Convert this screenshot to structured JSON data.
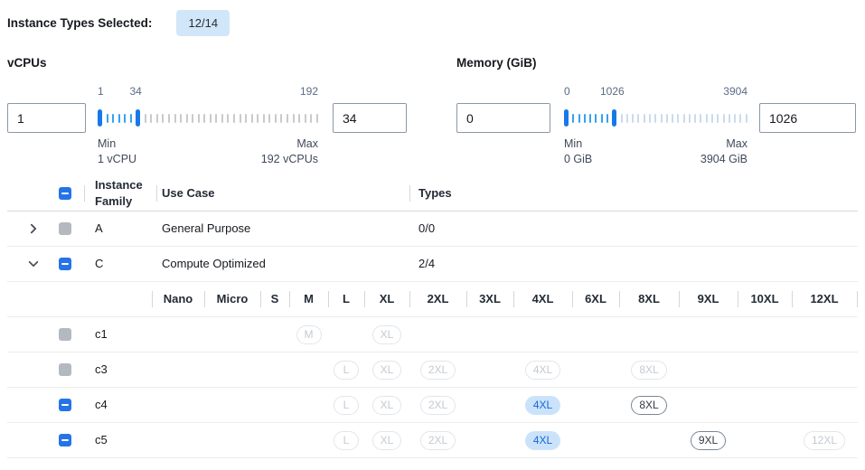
{
  "summary": {
    "label": "Instance Types Selected:",
    "count": "12/14"
  },
  "filters": [
    {
      "id": "vcpus",
      "title": "vCPUs",
      "from_value": "1",
      "to_value": "34",
      "scale_labels": [
        "1",
        "34",
        "192"
      ],
      "range": {
        "min": 1,
        "max": 192,
        "low": 1,
        "high": 34
      },
      "tick_count": 37,
      "min_label": "Min",
      "min_caption": "1 vCPU",
      "max_label": "Max",
      "max_caption": "192 vCPUs"
    },
    {
      "id": "memory",
      "title": "Memory (GiB)",
      "from_value": "0",
      "to_value": "1026",
      "scale_labels": [
        "0",
        "1026",
        "3904"
      ],
      "range": {
        "min": 0,
        "max": 3904,
        "low": 0,
        "high": 1026
      },
      "tick_count": 32,
      "min_label": "Min",
      "min_caption": "0 GiB",
      "max_label": "Max",
      "max_caption": "3904 GiB"
    }
  ],
  "table": {
    "select_all_state": "indeterminate",
    "columns": [
      {
        "id": "family",
        "label": "Instance Family"
      },
      {
        "id": "use_case",
        "label": "Use Case"
      },
      {
        "id": "types",
        "label": "Types"
      }
    ],
    "size_columns": [
      "Nano",
      "Micro",
      "S",
      "M",
      "L",
      "XL",
      "2XL",
      "3XL",
      "4XL",
      "6XL",
      "8XL",
      "9XL",
      "10XL",
      "12XL"
    ],
    "family_groups": [
      {
        "name": "A",
        "use_case": "General Purpose",
        "types_count": "0/0",
        "expanded": false,
        "checkbox": "disabled",
        "instances": []
      },
      {
        "name": "C",
        "use_case": "Compute Optimized",
        "types_count": "2/4",
        "expanded": true,
        "checkbox": "indeterminate",
        "instances": [
          {
            "name": "c1",
            "checkbox": "disabled",
            "sizes": {
              "M": "disabled",
              "XL": "disabled"
            }
          },
          {
            "name": "c3",
            "checkbox": "disabled",
            "sizes": {
              "L": "disabled",
              "XL": "disabled",
              "2XL": "disabled",
              "4XL": "disabled",
              "8XL": "disabled"
            }
          },
          {
            "name": "c4",
            "checkbox": "indeterminate",
            "sizes": {
              "L": "disabled",
              "XL": "disabled",
              "2XL": "disabled",
              "4XL": "selected",
              "8XL": "enabled"
            }
          },
          {
            "name": "c5",
            "checkbox": "indeterminate",
            "sizes": {
              "L": "disabled",
              "XL": "disabled",
              "2XL": "disabled",
              "4XL": "selected",
              "9XL": "enabled",
              "12XL": "disabled"
            }
          }
        ]
      }
    ]
  },
  "colors": {
    "accent_blue": "#2474e8",
    "badge_bg": "#d2e6f9",
    "slider_handle": "#1779e8",
    "slider_range_tick": "#36a1f2",
    "slider_muted_tick_vcpus": "#c8cacc",
    "slider_muted_tick_memory": "#cbdbed",
    "pill_selected_bg": "#cbe3fa",
    "pill_selected_text": "#1668dd",
    "checkbox_disabled": "#b4b9bf"
  }
}
